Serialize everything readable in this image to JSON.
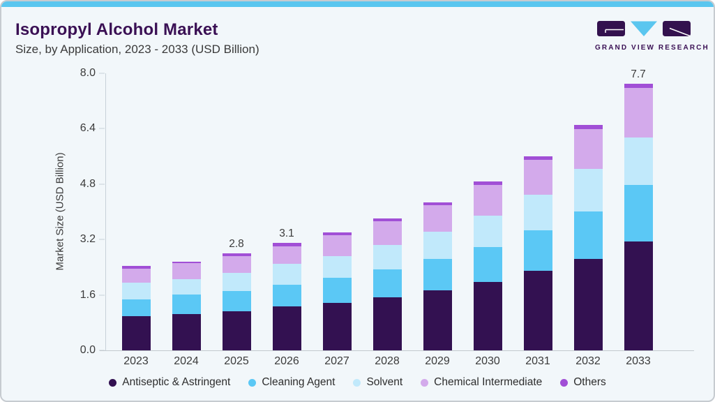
{
  "header": {
    "title": "Isopropyl Alcohol Market",
    "subtitle": "Size, by Application, 2023 - 2033 (USD Billion)"
  },
  "logo": {
    "text": "GRAND VIEW RESEARCH",
    "mark_colors": {
      "dark": "#33114e",
      "blue": "#5ac6ef"
    }
  },
  "colors": {
    "top_bar": "#5ac6ef",
    "card_background": "#f2f7fa",
    "axis_line": "#c7d1d8",
    "title_text": "#3a1054"
  },
  "chart_data": {
    "type": "bar",
    "stacked": true,
    "title": "Isopropyl Alcohol Market Size, by Application, 2023 - 2033 (USD Billion)",
    "xlabel": "",
    "ylabel": "Market Size (USD Billion)",
    "ylim": [
      0,
      8.0
    ],
    "yticks": [
      "0.0",
      "1.6",
      "3.2",
      "4.8",
      "6.4",
      "8.0"
    ],
    "grid": false,
    "legend_position": "bottom",
    "categories": [
      "2023",
      "2024",
      "2025",
      "2026",
      "2027",
      "2028",
      "2029",
      "2030",
      "2031",
      "2032",
      "2033"
    ],
    "series": [
      {
        "name": "Antiseptic & Astringent",
        "color": "#331151",
        "values": [
          0.98,
          1.05,
          1.13,
          1.26,
          1.37,
          1.54,
          1.74,
          1.98,
          2.29,
          2.64,
          3.14
        ]
      },
      {
        "name": "Cleaning Agent",
        "color": "#5bc8f5",
        "values": [
          0.5,
          0.56,
          0.59,
          0.63,
          0.73,
          0.79,
          0.91,
          1.01,
          1.18,
          1.37,
          1.63
        ]
      },
      {
        "name": "Solvent",
        "color": "#c1e9fb",
        "values": [
          0.47,
          0.44,
          0.52,
          0.6,
          0.62,
          0.71,
          0.78,
          0.9,
          1.03,
          1.22,
          1.38
        ]
      },
      {
        "name": "Chemical Intermediate",
        "color": "#d3aaeb",
        "values": [
          0.41,
          0.46,
          0.49,
          0.52,
          0.6,
          0.68,
          0.76,
          0.89,
          1.0,
          1.16,
          1.42
        ]
      },
      {
        "name": "Others",
        "color": "#a14fd6",
        "values": [
          0.07,
          0.06,
          0.07,
          0.09,
          0.08,
          0.09,
          0.09,
          0.1,
          0.11,
          0.12,
          0.13
        ]
      }
    ],
    "bar_totals": [
      2.43,
      2.57,
      2.8,
      3.1,
      3.4,
      3.81,
      4.28,
      4.88,
      5.61,
      6.51,
      7.7
    ],
    "bar_labels": {
      "2025": "2.8",
      "2026": "3.1",
      "2033": "7.7"
    }
  }
}
